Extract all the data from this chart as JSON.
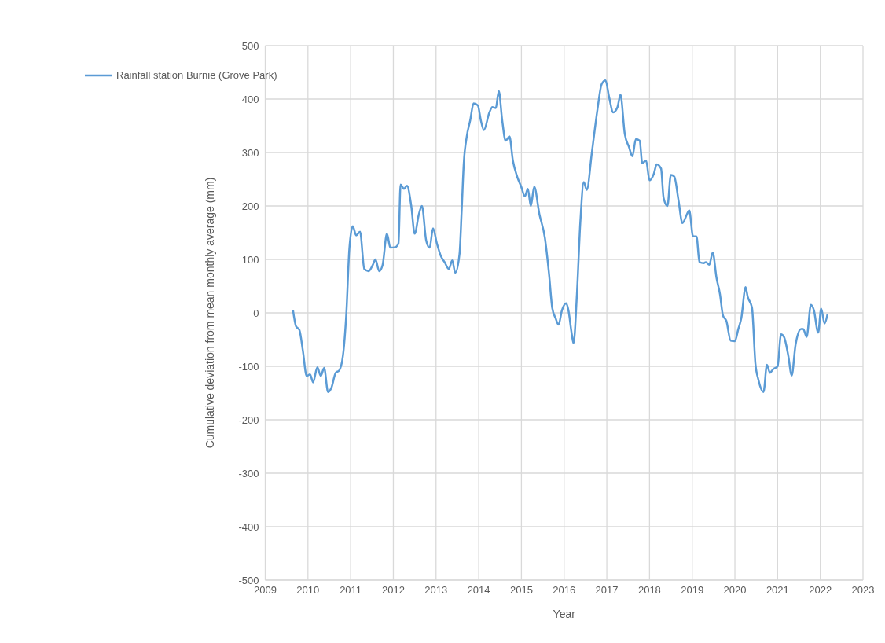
{
  "chart_data": {
    "type": "line",
    "xlabel": "Year",
    "ylabel": "Cumulative deviation from mean monthly average (mm)",
    "x": [
      2009.65,
      2009.72,
      2009.8,
      2009.88,
      2009.97,
      2010.05,
      2010.12,
      2010.22,
      2010.3,
      2010.38,
      2010.47,
      2010.55,
      2010.65,
      2010.73,
      2010.82,
      2010.9,
      2010.97,
      2011.05,
      2011.13,
      2011.22,
      2011.32,
      2011.42,
      2011.52,
      2011.58,
      2011.67,
      2011.75,
      2011.85,
      2011.93,
      2012.05,
      2012.12,
      2012.17,
      2012.25,
      2012.32,
      2012.42,
      2012.5,
      2012.6,
      2012.67,
      2012.77,
      2012.85,
      2012.93,
      2013.02,
      2013.12,
      2013.2,
      2013.3,
      2013.38,
      2013.45,
      2013.55,
      2013.6,
      2013.65,
      2013.72,
      2013.8,
      2013.88,
      2013.98,
      2014.05,
      2014.12,
      2014.25,
      2014.32,
      2014.4,
      2014.47,
      2014.55,
      2014.63,
      2014.72,
      2014.8,
      2014.9,
      2015.0,
      2015.08,
      2015.15,
      2015.22,
      2015.3,
      2015.42,
      2015.55,
      2015.65,
      2015.72,
      2015.8,
      2015.87,
      2015.95,
      2016.05,
      2016.1,
      2016.18,
      2016.22,
      2016.3,
      2016.38,
      2016.46,
      2016.53,
      2016.65,
      2016.78,
      2016.88,
      2016.97,
      2017.05,
      2017.15,
      2017.25,
      2017.32,
      2017.42,
      2017.52,
      2017.6,
      2017.68,
      2017.77,
      2017.83,
      2017.92,
      2018.0,
      2018.1,
      2018.17,
      2018.27,
      2018.33,
      2018.42,
      2018.5,
      2018.58,
      2018.68,
      2018.77,
      2018.88,
      2018.93,
      2019.02,
      2019.1,
      2019.17,
      2019.27,
      2019.32,
      2019.4,
      2019.48,
      2019.57,
      2019.65,
      2019.72,
      2019.8,
      2019.9,
      2020.0,
      2020.08,
      2020.15,
      2020.25,
      2020.3,
      2020.4,
      2020.48,
      2020.55,
      2020.67,
      2020.75,
      2020.82,
      2020.9,
      2021.0,
      2021.08,
      2021.15,
      2021.25,
      2021.33,
      2021.42,
      2021.55,
      2021.6,
      2021.68,
      2021.78,
      2021.85,
      2021.95,
      2022.02,
      2022.1,
      2022.17
    ],
    "series": [
      {
        "name": "Rainfall station Burnie (Grove Park)",
        "color": "#5b9bd5",
        "values": [
          5,
          -25,
          -32,
          -70,
          -118,
          -115,
          -130,
          -102,
          -118,
          -103,
          -148,
          -140,
          -112,
          -108,
          -80,
          0,
          120,
          162,
          145,
          152,
          82,
          78,
          90,
          100,
          78,
          90,
          148,
          122,
          123,
          130,
          240,
          232,
          238,
          200,
          148,
          185,
          200,
          135,
          122,
          158,
          130,
          105,
          95,
          82,
          98,
          75,
          110,
          190,
          280,
          330,
          360,
          392,
          388,
          360,
          342,
          375,
          385,
          383,
          415,
          360,
          322,
          330,
          285,
          255,
          235,
          218,
          232,
          200,
          236,
          185,
          140,
          70,
          10,
          -10,
          -22,
          5,
          18,
          5,
          -40,
          -57,
          35,
          170,
          245,
          230,
          300,
          380,
          428,
          435,
          405,
          375,
          385,
          408,
          335,
          310,
          293,
          325,
          322,
          280,
          285,
          248,
          260,
          278,
          270,
          215,
          200,
          258,
          255,
          210,
          168,
          185,
          192,
          143,
          143,
          95,
          93,
          95,
          90,
          113,
          65,
          35,
          -5,
          -15,
          -52,
          -53,
          -30,
          -10,
          48,
          30,
          10,
          -95,
          -125,
          -148,
          -97,
          -112,
          -105,
          -100,
          -40,
          -45,
          -80,
          -117,
          -60,
          -30,
          -30,
          -45,
          15,
          5,
          -37,
          8,
          -20,
          -2
        ]
      }
    ],
    "xlim": [
      2009,
      2023
    ],
    "xticks": [
      2009,
      2010,
      2011,
      2012,
      2013,
      2014,
      2015,
      2016,
      2017,
      2018,
      2019,
      2020,
      2021,
      2022,
      2023
    ],
    "ylim": [
      -500,
      500
    ],
    "yticks": [
      -500,
      -400,
      -300,
      -200,
      -100,
      0,
      100,
      200,
      300,
      400,
      500
    ],
    "grid": true,
    "legend": "top left",
    "marker": "none",
    "line_style": "solid"
  }
}
